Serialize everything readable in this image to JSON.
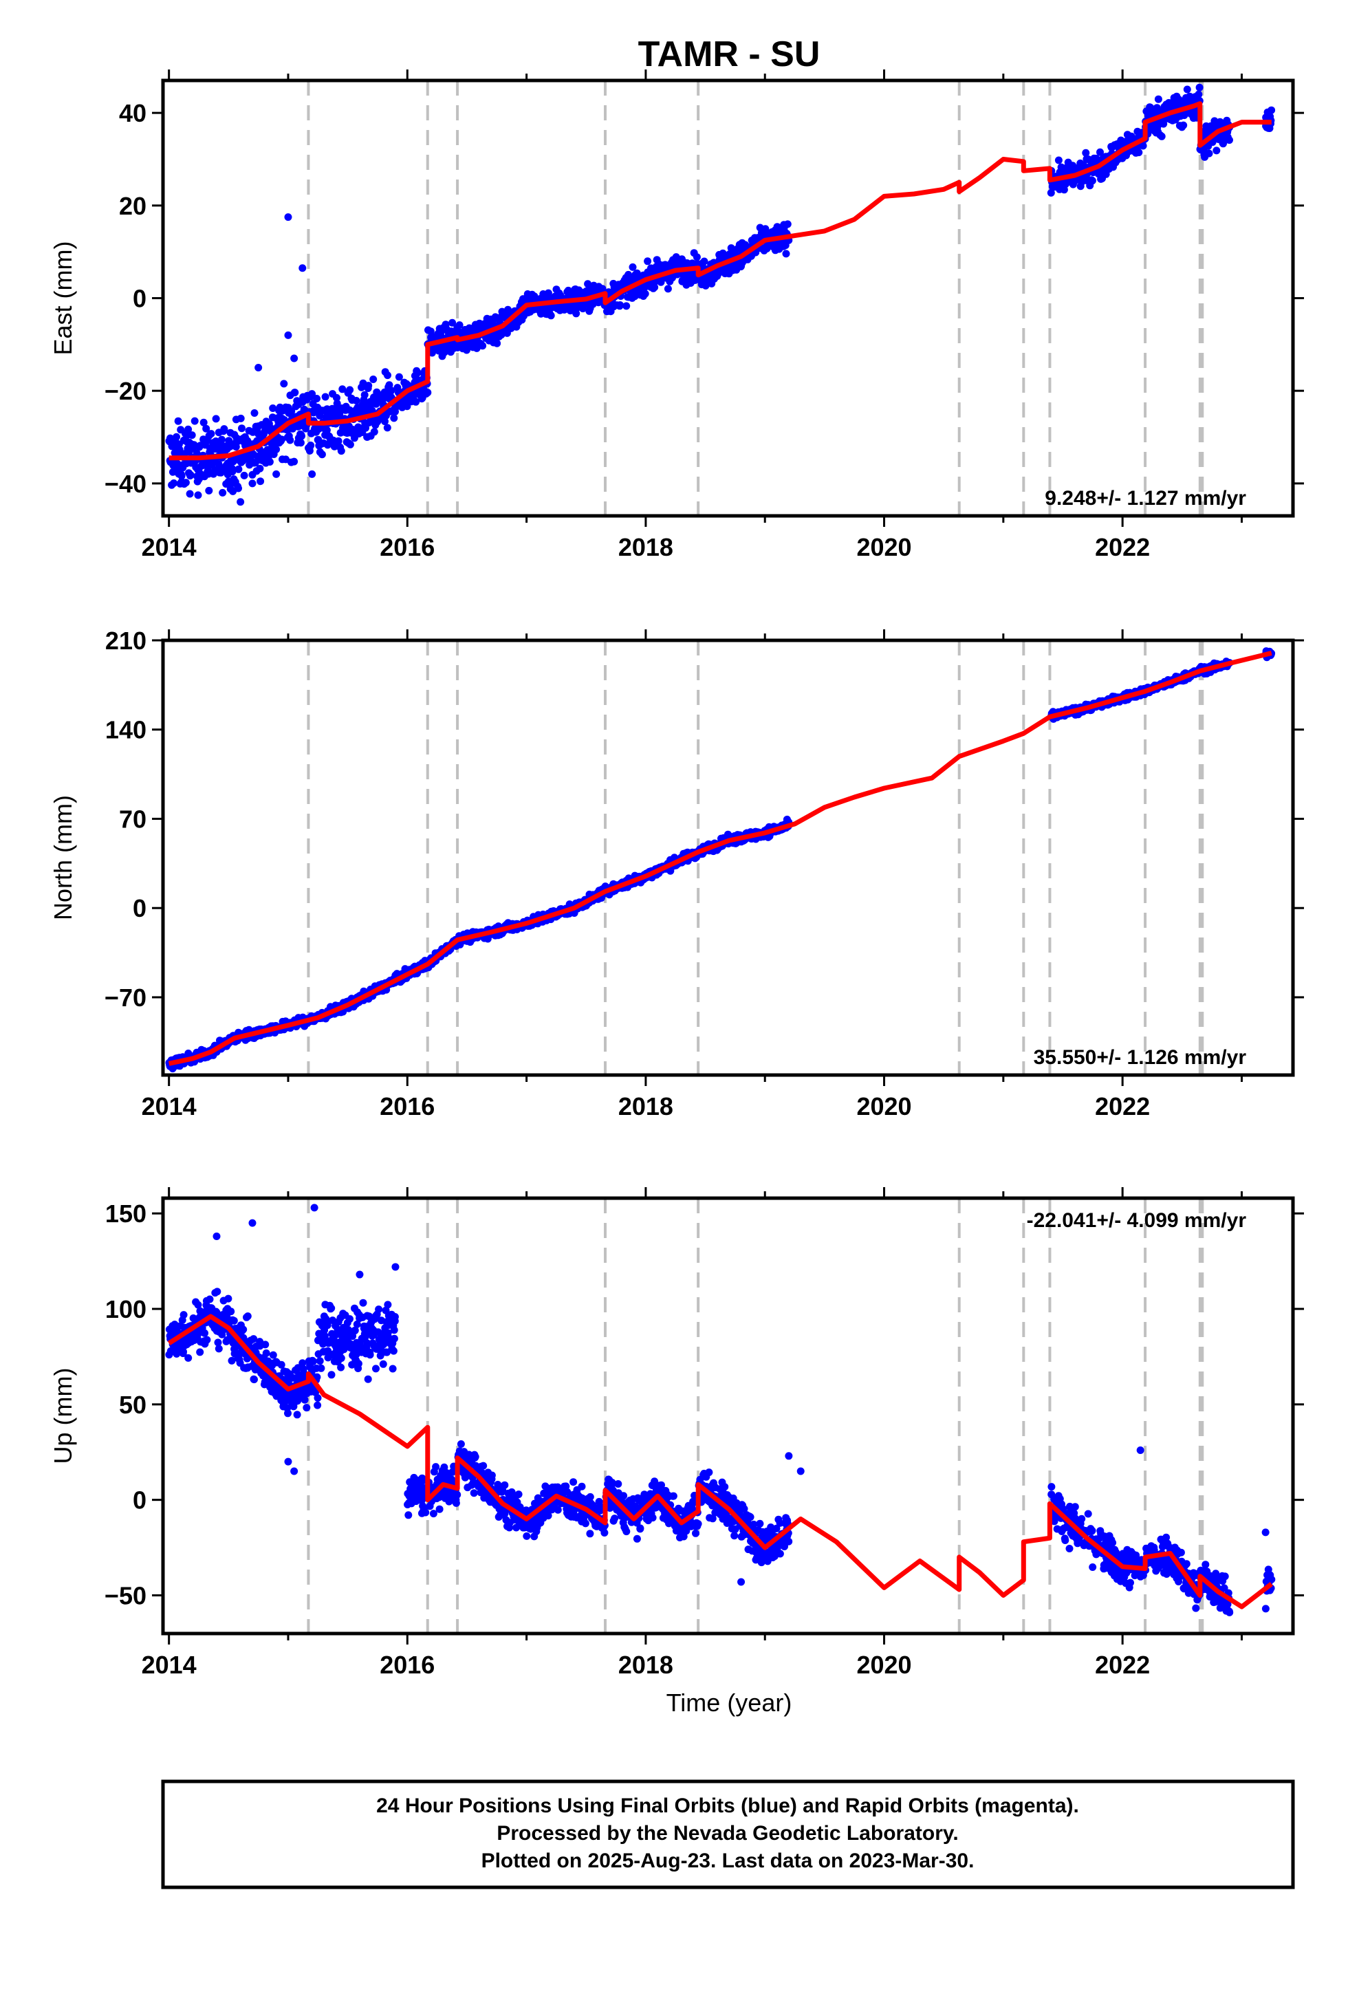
{
  "title": "TAMR - SU",
  "xlabel": "Time (year)",
  "caption": {
    "line1": "24 Hour Positions Using Final Orbits (blue) and Rapid Orbits (magenta).",
    "line2": "Processed by the Nevada Geodetic Laboratory.",
    "line3": "Plotted on 2025-Aug-23. Last data on 2023-Mar-30."
  },
  "colors": {
    "points": "#0000ff",
    "model": "#ff0000",
    "events": "#c0c0c0",
    "frame": "#000000"
  },
  "x_ticks": [
    2014,
    2016,
    2018,
    2020,
    2022
  ],
  "xlim": [
    2013.95,
    2023.43
  ],
  "event_lines": [
    2015.17,
    2016.17,
    2016.42,
    2017.66,
    2018.44,
    2020.63,
    2021.17,
    2021.39,
    2022.19,
    2022.65,
    2022.67
  ],
  "chart_data": [
    {
      "type": "scatter",
      "ylabel": "East (mm)",
      "ylim": [
        -47,
        47
      ],
      "y_ticks": [
        -40,
        -20,
        0,
        20,
        40
      ],
      "rate_label": "9.248+/- 1.127 mm/yr",
      "rate_position": "bottom-right",
      "segments": [
        {
          "x0": 2014.0,
          "x1": 2015.25,
          "jitter": 5
        },
        {
          "x0": 2015.25,
          "x1": 2015.85,
          "jitter": 4.5
        },
        {
          "x0": 2015.85,
          "x1": 2016.17,
          "jitter": 2.5
        },
        {
          "x0": 2016.17,
          "x1": 2019.2,
          "jitter": 2
        },
        {
          "x0": 2021.4,
          "x1": 2022.2,
          "jitter": 2
        },
        {
          "x0": 2022.2,
          "x1": 2022.9,
          "jitter": 2.5
        },
        {
          "x0": 2023.2,
          "x1": 2023.25,
          "jitter": 2
        }
      ],
      "model": {
        "x": [
          2014.0,
          2014.25,
          2014.5,
          2014.75,
          2015.0,
          2015.17,
          2015.17,
          2015.3,
          2015.5,
          2015.75,
          2016.0,
          2016.17,
          2016.17,
          2016.42,
          2016.42,
          2016.6,
          2016.8,
          2017.0,
          2017.25,
          2017.5,
          2017.66,
          2017.66,
          2017.8,
          2018.0,
          2018.25,
          2018.44,
          2018.44,
          2018.6,
          2018.8,
          2019.0,
          2019.25,
          2019.5,
          2019.75,
          2020.0,
          2020.25,
          2020.5,
          2020.63,
          2020.63,
          2020.8,
          2021.0,
          2021.17,
          2021.17,
          2021.39,
          2021.39,
          2021.6,
          2021.8,
          2022.0,
          2022.19,
          2022.19,
          2022.4,
          2022.6,
          2022.65,
          2022.65,
          2022.8,
          2023.0,
          2023.25
        ],
        "y": [
          -34.5,
          -34.5,
          -34,
          -32,
          -27,
          -25,
          -27,
          -27,
          -26.5,
          -25,
          -20,
          -18,
          -10,
          -8.5,
          -9,
          -8,
          -6,
          -1.5,
          -0.8,
          -0.2,
          1,
          -1,
          1.5,
          4,
          6,
          6.5,
          5,
          7,
          9,
          12.5,
          13.5,
          14.5,
          17,
          22,
          22.5,
          23.5,
          25,
          23,
          26,
          30,
          29.5,
          27.5,
          28,
          25.5,
          26.5,
          28.5,
          32,
          34.5,
          38,
          40,
          41.5,
          42,
          33,
          36,
          38,
          38
        ]
      },
      "outliers": [
        [
          2015.0,
          17.5
        ],
        [
          2015.12,
          6.5
        ],
        [
          2015.0,
          -8
        ],
        [
          2015.05,
          -13
        ],
        [
          2014.75,
          -15
        ],
        [
          2014.6,
          -44
        ],
        [
          2014.7,
          -40
        ],
        [
          2014.45,
          -42
        ],
        [
          2015.2,
          -38
        ],
        [
          2014.9,
          -38
        ]
      ]
    },
    {
      "type": "scatter",
      "ylabel": "North (mm)",
      "ylim": [
        -131,
        210
      ],
      "y_ticks": [
        -70,
        0,
        70,
        140,
        210
      ],
      "rate_label": "35.550+/- 1.126 mm/yr",
      "rate_position": "bottom-right",
      "segments": [
        {
          "x0": 2014.0,
          "x1": 2019.2,
          "jitter": 2.5
        },
        {
          "x0": 2021.4,
          "x1": 2022.9,
          "jitter": 2
        },
        {
          "x0": 2023.2,
          "x1": 2023.25,
          "jitter": 2
        }
      ],
      "model": {
        "x": [
          2014.0,
          2014.2,
          2014.35,
          2014.55,
          2015.0,
          2015.25,
          2015.5,
          2016.0,
          2016.17,
          2016.42,
          2016.7,
          2017.0,
          2017.4,
          2017.66,
          2018.0,
          2018.44,
          2018.7,
          2019.0,
          2019.25,
          2019.5,
          2019.75,
          2020.0,
          2020.4,
          2020.63,
          2021.0,
          2021.17,
          2021.39,
          2021.7,
          2022.0,
          2022.19,
          2022.4,
          2022.65,
          2022.9,
          2023.25
        ],
        "y": [
          -122,
          -118,
          -113,
          -102,
          -92,
          -86,
          -76,
          -52,
          -44,
          -25,
          -19,
          -12,
          0,
          13,
          25,
          44,
          53,
          59,
          66,
          79,
          87,
          94,
          102,
          119,
          131,
          137,
          150,
          157,
          165,
          170,
          177,
          186,
          192,
          200
        ]
      },
      "outliers": []
    },
    {
      "type": "scatter",
      "ylabel": "Up (mm)",
      "ylim": [
        -70,
        158
      ],
      "y_ticks": [
        -50,
        0,
        50,
        100,
        150
      ],
      "rate_label": "-22.041+/- 4.099 mm/yr",
      "rate_position": "top-right",
      "segments": [
        {
          "x0": 2014.0,
          "x1": 2015.25,
          "jitter": 9
        },
        {
          "x0": 2015.25,
          "x1": 2015.9,
          "jitter": 12
        },
        {
          "x0": 2016.0,
          "x1": 2019.2,
          "jitter": 7
        },
        {
          "x0": 2021.4,
          "x1": 2022.9,
          "jitter": 7
        },
        {
          "x0": 2023.2,
          "x1": 2023.25,
          "jitter": 8
        }
      ],
      "upoffsets": [
        [
          2014.0,
          2014.6,
          0
        ],
        [
          2015.25,
          2015.9,
          85
        ],
        [
          2016.0,
          2016.17,
          3
        ]
      ],
      "model": {
        "x": [
          2014.0,
          2014.15,
          2014.35,
          2014.5,
          2014.75,
          2015.0,
          2015.17,
          2015.17,
          2015.3,
          2015.6,
          2016.0,
          2016.17,
          2016.17,
          2016.3,
          2016.42,
          2016.42,
          2016.6,
          2016.8,
          2017.0,
          2017.25,
          2017.5,
          2017.66,
          2017.66,
          2017.9,
          2018.1,
          2018.3,
          2018.44,
          2018.44,
          2018.7,
          2019.0,
          2019.3,
          2019.6,
          2020.0,
          2020.3,
          2020.63,
          2020.63,
          2020.8,
          2021.0,
          2021.17,
          2021.17,
          2021.39,
          2021.39,
          2021.7,
          2022.0,
          2022.19,
          2022.19,
          2022.4,
          2022.65,
          2022.65,
          2022.8,
          2023.0,
          2023.25
        ],
        "y": [
          82,
          88,
          96,
          90,
          72,
          58,
          62,
          66,
          55,
          45,
          28,
          38,
          0,
          8,
          6,
          22,
          12,
          -2,
          -10,
          2,
          -5,
          -12,
          5,
          -10,
          2,
          -12,
          -6,
          8,
          -5,
          -25,
          -10,
          -22,
          -46,
          -32,
          -47,
          -30,
          -38,
          -50,
          -42,
          -22,
          -20,
          -2,
          -20,
          -35,
          -36,
          -30,
          -28,
          -50,
          -40,
          -48,
          -56,
          -44
        ]
      },
      "outliers": [
        [
          2015.0,
          20
        ],
        [
          2015.05,
          15
        ],
        [
          2014.7,
          145
        ],
        [
          2014.4,
          138
        ],
        [
          2015.22,
          153
        ],
        [
          2015.6,
          118
        ],
        [
          2015.9,
          122
        ],
        [
          2019.2,
          23
        ],
        [
          2019.3,
          15
        ],
        [
          2018.8,
          -43
        ],
        [
          2022.15,
          26
        ],
        [
          2023.2,
          -17
        ]
      ]
    }
  ]
}
